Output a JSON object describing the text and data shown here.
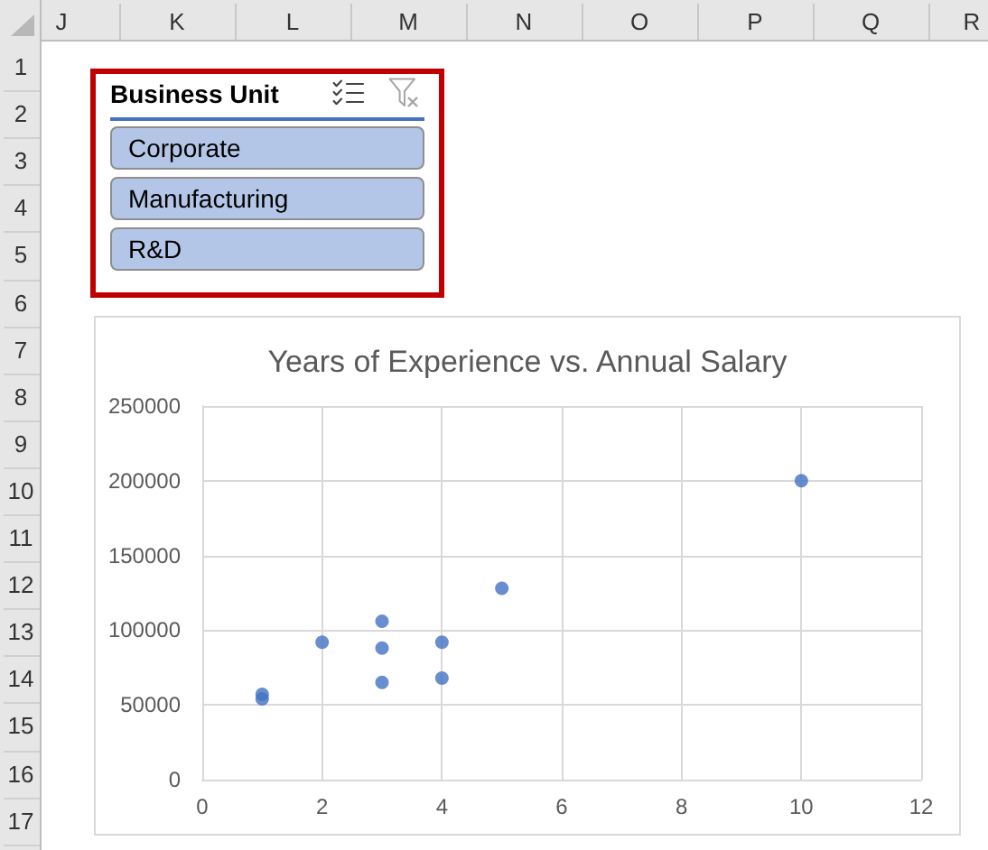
{
  "chart_data": [
    {
      "type": "heatmap",
      "categories": [
        "J",
        "K",
        "L",
        "M",
        "N",
        "O",
        "P",
        "Q",
        "R"
      ],
      "y_categories": [
        "1",
        "2",
        "3",
        "4",
        "5",
        "6",
        "7",
        "8",
        "9",
        "10",
        "11",
        "12",
        "13",
        "14",
        "15",
        "16",
        "17"
      ],
      "cells": [
        [
          null,
          null,
          null,
          null,
          null,
          null,
          null,
          null,
          null
        ],
        [
          null,
          null,
          null,
          null,
          null,
          null,
          null,
          null,
          null
        ],
        [
          null,
          null,
          null,
          null,
          null,
          null,
          null,
          null,
          null
        ],
        [
          null,
          null,
          null,
          null,
          null,
          null,
          null,
          null,
          null
        ],
        [
          null,
          null,
          null,
          null,
          null,
          null,
          null,
          null,
          null
        ],
        [
          null,
          null,
          null,
          null,
          null,
          null,
          null,
          null,
          null
        ],
        [
          null,
          null,
          null,
          null,
          null,
          null,
          null,
          null,
          null
        ],
        [
          null,
          null,
          null,
          null,
          null,
          null,
          null,
          null,
          null
        ],
        [
          null,
          null,
          null,
          null,
          null,
          null,
          null,
          null,
          null
        ],
        [
          null,
          null,
          null,
          null,
          null,
          null,
          null,
          null,
          null
        ],
        [
          null,
          null,
          null,
          null,
          null,
          null,
          null,
          null,
          null
        ],
        [
          null,
          null,
          null,
          null,
          null,
          null,
          null,
          null,
          null
        ],
        [
          null,
          null,
          null,
          null,
          null,
          null,
          null,
          null,
          null
        ],
        [
          null,
          null,
          null,
          null,
          null,
          null,
          null,
          null,
          null
        ],
        [
          null,
          null,
          null,
          null,
          null,
          null,
          null,
          null,
          null
        ],
        [
          null,
          null,
          null,
          null,
          null,
          null,
          null,
          null,
          null
        ],
        [
          null,
          null,
          null,
          null,
          null,
          null,
          null,
          null,
          null
        ]
      ]
    },
    {
      "type": "other",
      "title": "Business Unit",
      "categories": [
        "Corporate",
        "Manufacturing",
        "R&D"
      ]
    },
    {
      "type": "scatter",
      "title": "Years of Experience vs. Annual Salary",
      "x": [
        1,
        1,
        2,
        3,
        3,
        3,
        4,
        4,
        5,
        10
      ],
      "values": [
        57000,
        54000,
        92000,
        106000,
        88000,
        65000,
        92000,
        68000,
        128000,
        200000
      ],
      "color": "#4472c4",
      "xlim": [
        0,
        12
      ],
      "xticks": [
        0,
        2,
        4,
        6,
        8,
        10,
        12
      ],
      "ylim": [
        0,
        250000
      ],
      "yticks": [
        0,
        50000,
        100000,
        150000,
        200000,
        250000
      ],
      "grid": true,
      "marker": "circle"
    }
  ]
}
